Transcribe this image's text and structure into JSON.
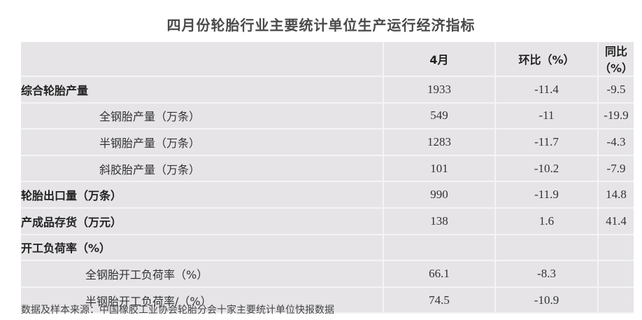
{
  "title": "四月份轮胎行业主要统计单位生产运行经济指标",
  "table": {
    "headers": [
      "",
      "4月",
      "环比（%）",
      "同比（%）"
    ],
    "rows": [
      {
        "label": "综合轮胎产量",
        "value": "1933",
        "mom": "-11.4",
        "yoy": "-9.5",
        "level": 0
      },
      {
        "label": "全钢胎产量（万条）",
        "value": "549",
        "mom": "-11",
        "yoy": "-19.9",
        "level": 1
      },
      {
        "label": "半钢胎产量（万条）",
        "value": "1283",
        "mom": "-11.7",
        "yoy": "-4.3",
        "level": 1
      },
      {
        "label": "斜胶胎产量（万条）",
        "value": "101",
        "mom": "-10.2",
        "yoy": "-7.9",
        "level": 1
      },
      {
        "label": "轮胎出口量（万条）",
        "value": "990",
        "mom": "-11.9",
        "yoy": "14.8",
        "level": 0
      },
      {
        "label": "产成品存货（万元）",
        "value": "138",
        "mom": "1.6",
        "yoy": "41.4",
        "level": 0
      },
      {
        "label": "开工负荷率（%）",
        "value": "",
        "mom": "",
        "yoy": "",
        "level": 0
      },
      {
        "label": "全钢胎开工负荷率（%）",
        "value": "66.1",
        "mom": "-8.3",
        "yoy": "",
        "level": 2
      },
      {
        "label": "半钢胎开工负荷率/（%）",
        "value": "74.5",
        "mom": "-10.9",
        "yoy": "",
        "level": 2
      }
    ]
  },
  "note": "数据及样本来源：中国橡胶工业协会轮胎分会十家主要统计单位快报数据"
}
